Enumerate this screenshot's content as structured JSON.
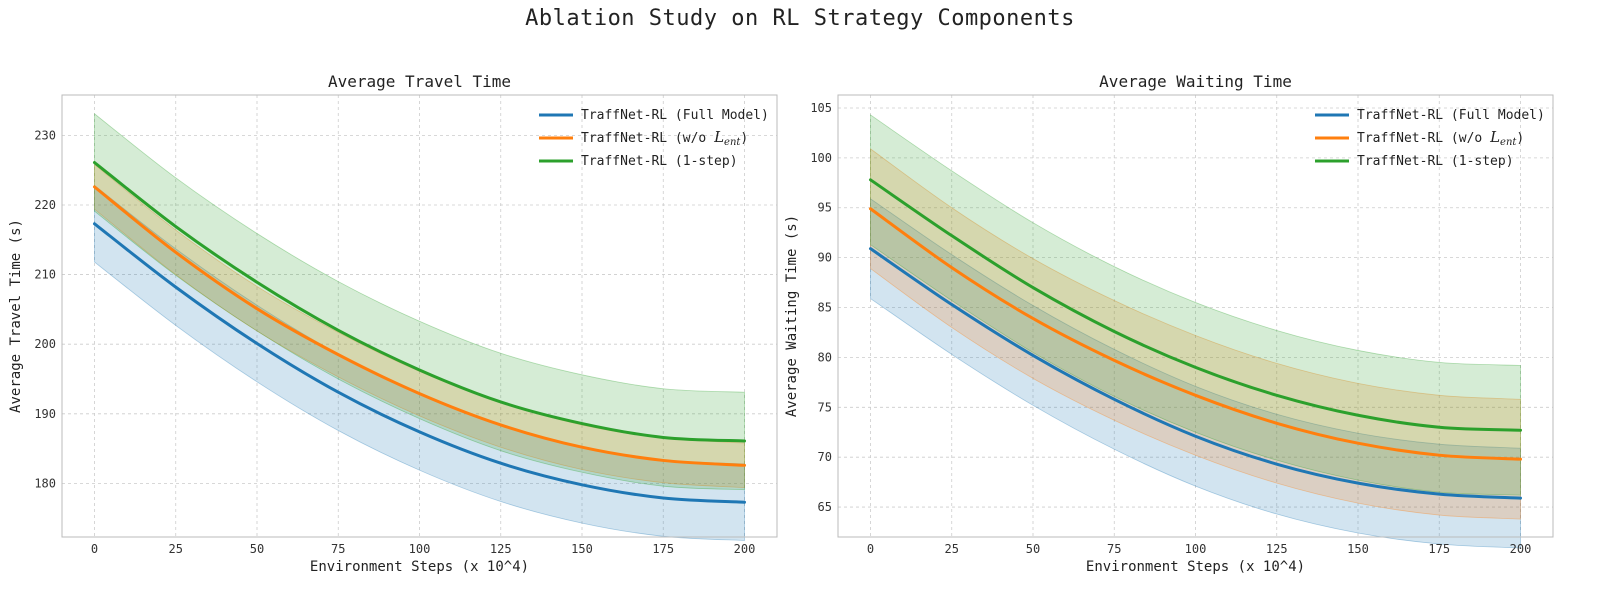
{
  "figure": {
    "suptitle": "Ablation Study on RL Strategy Components",
    "colors": {
      "full": "#1f77b4",
      "no_ent": "#ff7f0e",
      "one_step": "#2ca02c"
    }
  },
  "chart_data": [
    {
      "type": "line",
      "title": "Average Travel Time",
      "xlabel": "Environment Steps (x 10^4)",
      "ylabel": "Average Travel Time (s)",
      "xlim": [
        -10,
        210
      ],
      "ylim": [
        172.3,
        235.8
      ],
      "xticks": [
        0,
        25,
        50,
        75,
        100,
        125,
        150,
        175,
        200
      ],
      "yticks": [
        180,
        190,
        200,
        210,
        220,
        230
      ],
      "grid": true,
      "legend_position": "top-right",
      "x": [
        0,
        25,
        50,
        75,
        100,
        125,
        150,
        175,
        200
      ],
      "series": [
        {
          "key": "full",
          "legend_text": "TraffNet-RL (Full Model)",
          "values": [
            217.3,
            208.2,
            200.1,
            193.1,
            187.4,
            182.9,
            179.8,
            177.9,
            177.3
          ],
          "band": 5.5
        },
        {
          "key": "no_ent",
          "legend_text": "TraffNet-RL (w/o ",
          "legend_math": "L",
          "legend_sub": "ent",
          "legend_tail": ")",
          "values": [
            222.6,
            213.2,
            205.1,
            198.5,
            192.9,
            188.4,
            185.2,
            183.3,
            182.6
          ],
          "band": 3.2
        },
        {
          "key": "one_step",
          "legend_text": "TraffNet-RL (1-step)",
          "values": [
            226.1,
            216.9,
            208.9,
            202.0,
            196.3,
            191.7,
            188.6,
            186.6,
            186.1
          ],
          "band": 7.0
        }
      ]
    },
    {
      "type": "line",
      "title": "Average Waiting Time",
      "xlabel": "Environment Steps (x 10^4)",
      "ylabel": "Average Waiting Time (s)",
      "xlim": [
        -10,
        210
      ],
      "ylim": [
        62.0,
        106.3
      ],
      "xticks": [
        0,
        25,
        50,
        75,
        100,
        125,
        150,
        175,
        200
      ],
      "yticks": [
        65,
        70,
        75,
        80,
        85,
        90,
        95,
        100,
        105
      ],
      "grid": true,
      "legend_position": "top-right",
      "x": [
        0,
        25,
        50,
        75,
        100,
        125,
        150,
        175,
        200
      ],
      "series": [
        {
          "key": "full",
          "legend_text": "TraffNet-RL (Full Model)",
          "values": [
            90.9,
            85.3,
            80.2,
            75.8,
            72.1,
            69.3,
            67.4,
            66.3,
            65.9
          ],
          "band": 5.0
        },
        {
          "key": "no_ent",
          "legend_text": "TraffNet-RL (w/o ",
          "legend_math": "L",
          "legend_sub": "ent",
          "legend_tail": ")",
          "values": [
            94.9,
            89.0,
            83.9,
            79.7,
            76.2,
            73.4,
            71.4,
            70.2,
            69.8
          ],
          "band": 6.0
        },
        {
          "key": "one_step",
          "legend_text": "TraffNet-RL (1-step)",
          "values": [
            97.8,
            92.2,
            87.0,
            82.6,
            79.0,
            76.2,
            74.2,
            73.0,
            72.7
          ],
          "band": 6.5
        }
      ]
    }
  ]
}
